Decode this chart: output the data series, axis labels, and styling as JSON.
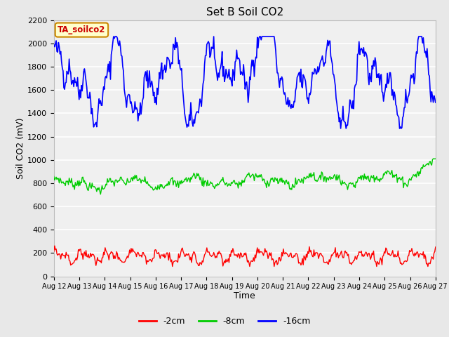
{
  "title": "Set B Soil CO2",
  "xlabel": "Time",
  "ylabel": "Soil CO2 (mV)",
  "ylim": [
    0,
    2200
  ],
  "yticks": [
    0,
    200,
    400,
    600,
    800,
    1000,
    1200,
    1400,
    1600,
    1800,
    2000,
    2200
  ],
  "x_labels": [
    "Aug 12",
    "Aug 13",
    "Aug 14",
    "Aug 15",
    "Aug 16",
    "Aug 17",
    "Aug 18",
    "Aug 19",
    "Aug 20",
    "Aug 21",
    "Aug 22",
    "Aug 23",
    "Aug 24",
    "Aug 25",
    "Aug 26",
    "Aug 27"
  ],
  "legend_labels": [
    "-2cm",
    "-8cm",
    "-16cm"
  ],
  "legend_colors": [
    "#ff0000",
    "#00cc00",
    "#0000ff"
  ],
  "line_colors": [
    "#ff0000",
    "#00cc00",
    "#0000ff"
  ],
  "annotation_text": "TA_soilco2",
  "annotation_bg": "#ffffcc",
  "annotation_border": "#cc8800",
  "fig_bg": "#e8e8e8",
  "plot_bg": "#f0f0f0",
  "title_fontsize": 11,
  "axis_label_fontsize": 9,
  "tick_fontsize": 8,
  "legend_fontsize": 9
}
